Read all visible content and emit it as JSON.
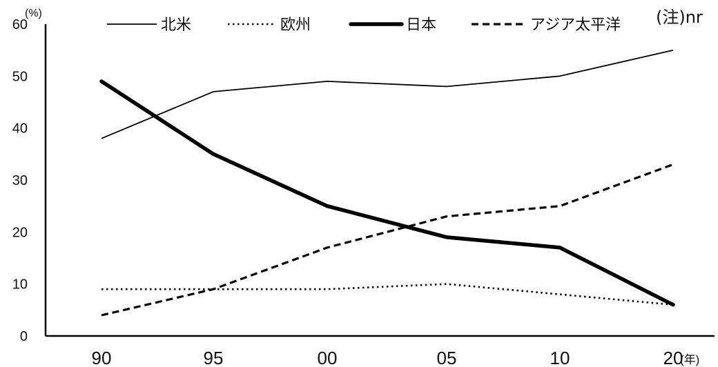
{
  "chart_data": {
    "type": "line",
    "x": [
      "90",
      "95",
      "00",
      "05",
      "10",
      "20"
    ],
    "y_unit": "(%)",
    "x_unit": "(年)",
    "note": "(注)nr",
    "ylim": [
      0,
      60
    ],
    "yticks": [
      0,
      10,
      20,
      30,
      40,
      50,
      60
    ],
    "grid": false,
    "legend_position": "top",
    "series": [
      {
        "name": "北米",
        "values": [
          38,
          47,
          49,
          48,
          50,
          55
        ],
        "style": "thin-solid"
      },
      {
        "name": "欧州",
        "values": [
          9,
          9,
          9,
          10,
          8,
          6
        ],
        "style": "dotted"
      },
      {
        "name": "日本",
        "values": [
          49,
          35,
          25,
          19,
          17,
          6
        ],
        "style": "thick-solid"
      },
      {
        "name": "アジア太平洋",
        "values": [
          4,
          9,
          17,
          23,
          25,
          33
        ],
        "style": "dashed"
      }
    ]
  }
}
